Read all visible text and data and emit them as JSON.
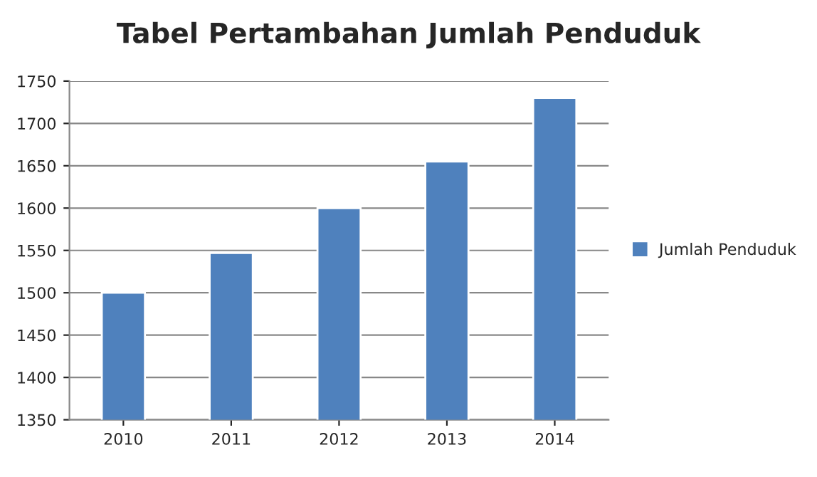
{
  "chart_data": {
    "type": "bar",
    "title": "Tabel Pertambahan Jumlah Penduduk",
    "categories": [
      "2010",
      "2011",
      "2012",
      "2013",
      "2014"
    ],
    "series": [
      {
        "name": "Jumlah Penduduk",
        "color": "#4f81bd",
        "values": [
          1500,
          1547,
          1600,
          1655,
          1730
        ]
      }
    ],
    "ylim": [
      1350,
      1750
    ],
    "yticks": [
      1350,
      1400,
      1450,
      1500,
      1550,
      1600,
      1650,
      1700,
      1750
    ],
    "grid": "y",
    "legend": "right"
  }
}
